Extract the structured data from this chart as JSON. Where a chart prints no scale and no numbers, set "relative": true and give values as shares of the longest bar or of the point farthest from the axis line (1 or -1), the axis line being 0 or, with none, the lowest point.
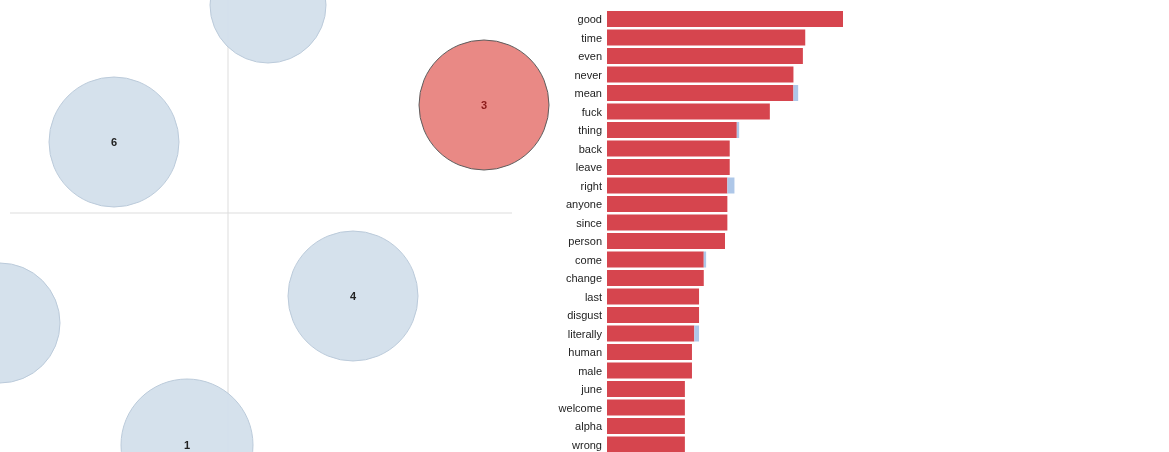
{
  "chart_data": [
    {
      "type": "other",
      "annotations": [
        "6",
        "3",
        "4",
        "1"
      ]
    },
    {
      "type": "bar",
      "orientation": "horizontal",
      "relative": true,
      "stacked": true,
      "categories": [
        "good",
        "time",
        "even",
        "never",
        "mean",
        "fuck",
        "thing",
        "back",
        "leave",
        "right",
        "anyone",
        "since",
        "person",
        "come",
        "change",
        "last",
        "disgust",
        "literally",
        "human",
        "male",
        "june",
        "welcome",
        "alpha",
        "wrong"
      ],
      "series": [
        {
          "color": "#d6454e",
          "values": [
            1.0,
            0.84,
            0.83,
            0.79,
            0.79,
            0.69,
            0.55,
            0.52,
            0.52,
            0.51,
            0.51,
            0.51,
            0.5,
            0.41,
            0.41,
            0.39,
            0.39,
            0.37,
            0.36,
            0.36,
            0.33,
            0.33,
            0.33,
            0.33
          ]
        },
        {
          "color": "#aec7e8",
          "values": [
            null,
            null,
            null,
            null,
            0.02,
            null,
            0.01,
            null,
            null,
            0.03,
            null,
            null,
            null,
            0.01,
            null,
            null,
            null,
            0.02,
            null,
            null,
            null,
            null,
            null,
            null
          ]
        }
      ]
    }
  ]
}
